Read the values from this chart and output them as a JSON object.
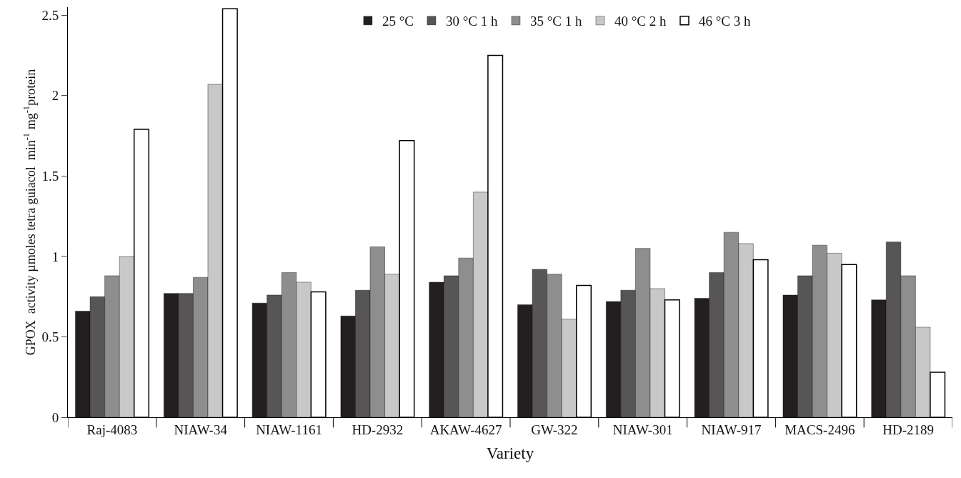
{
  "chart_data": {
    "type": "bar",
    "xlabel": "Variety",
    "ylabel": "GPOX  activity µmoles tetra guiacol  min$^{-1}$ mg$^{-1}$protein",
    "categories": [
      "Raj-4083",
      "NIAW-34",
      "NIAW-1161",
      "HD-2932",
      "AKAW-4627",
      "GW-322",
      "NIAW-301",
      "NIAW-917",
      "MACS-2496",
      "HD-2189"
    ],
    "series": [
      {
        "name": "25 °C",
        "color": "#231f20",
        "values": [
          0.66,
          0.77,
          0.71,
          0.63,
          0.84,
          0.7,
          0.72,
          0.74,
          0.76,
          0.73
        ]
      },
      {
        "name": "30 °C 1 h",
        "color": "#575655",
        "values": [
          0.75,
          0.77,
          0.76,
          0.79,
          0.88,
          0.92,
          0.79,
          0.9,
          0.88,
          1.09
        ]
      },
      {
        "name": "35 °C 1 h",
        "color": "#8f8e8e",
        "values": [
          0.88,
          0.87,
          0.9,
          1.06,
          0.99,
          0.89,
          1.05,
          1.15,
          1.07,
          0.88
        ]
      },
      {
        "name": "40 °C 2 h",
        "color": "#c8c8c8",
        "values": [
          1.0,
          2.07,
          0.84,
          0.89,
          1.4,
          0.61,
          0.8,
          1.08,
          1.02,
          0.56
        ]
      },
      {
        "name": "46 °C 3 h",
        "color": "#ffffff",
        "values": [
          1.79,
          2.54,
          0.78,
          1.72,
          2.25,
          0.82,
          0.73,
          0.98,
          0.95,
          0.28
        ]
      }
    ],
    "ylim": [
      0,
      2.55
    ],
    "yticks": [
      0,
      0.5,
      1,
      1.5,
      2,
      2.5
    ],
    "grid": false,
    "legend": "top"
  }
}
